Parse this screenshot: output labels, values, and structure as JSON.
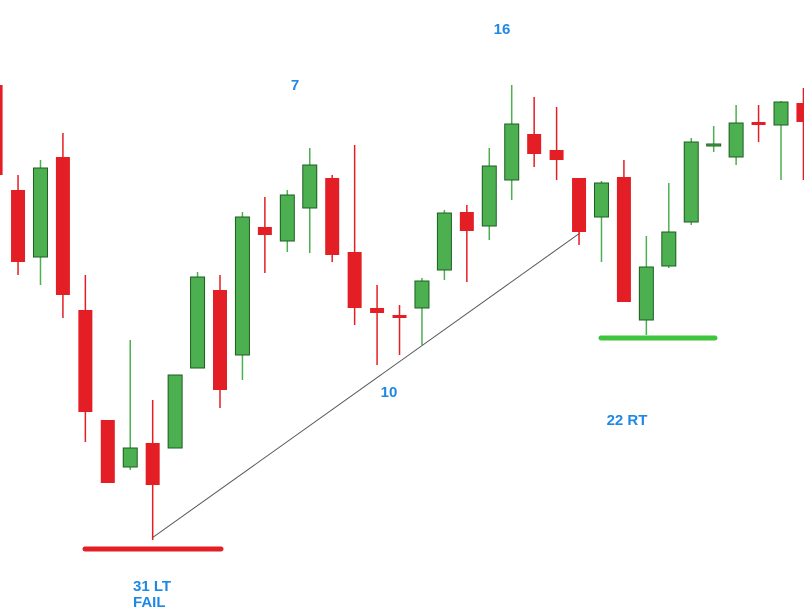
{
  "chart_data": {
    "type": "candlestick",
    "open": [
      529,
      424,
      357,
      457,
      304,
      194,
      147,
      171,
      166,
      246,
      324,
      259,
      387,
      373,
      406,
      436,
      362,
      306,
      299,
      306,
      344,
      402,
      388,
      434,
      480,
      464,
      436,
      397,
      437,
      294,
      348,
      392,
      468,
      457,
      492,
      489,
      511
    ],
    "high": [
      529,
      439,
      454,
      481,
      339,
      194,
      274,
      214,
      239,
      342,
      339,
      402,
      417,
      424,
      466,
      439,
      469,
      329,
      309,
      336,
      404,
      409,
      466,
      529,
      517,
      507,
      436,
      433,
      454,
      378,
      431,
      476,
      488,
      509,
      509,
      513,
      526
    ],
    "low": [
      439,
      339,
      329,
      296,
      172,
      131,
      144,
      74,
      166,
      246,
      206,
      234,
      341,
      362,
      361,
      352,
      289,
      249,
      259,
      269,
      334,
      332,
      374,
      414,
      447,
      434,
      369,
      352,
      312,
      279,
      346,
      389,
      462,
      449,
      472,
      434,
      434
    ],
    "close": [
      439,
      352,
      446,
      319,
      202,
      131,
      166,
      129,
      239,
      337,
      224,
      397,
      379,
      419,
      449,
      359,
      306,
      301,
      296,
      333,
      401,
      383,
      448,
      490,
      460,
      454,
      382,
      431,
      312,
      347,
      382,
      472,
      470,
      491,
      489,
      512,
      492
    ],
    "up_color": "#4caf50",
    "down_color": "#e31e24",
    "ylim": [
      0,
      614
    ],
    "annotations": [
      "16",
      "7",
      "10",
      "22 RT",
      "31 LT",
      "FAIL"
    ]
  }
}
